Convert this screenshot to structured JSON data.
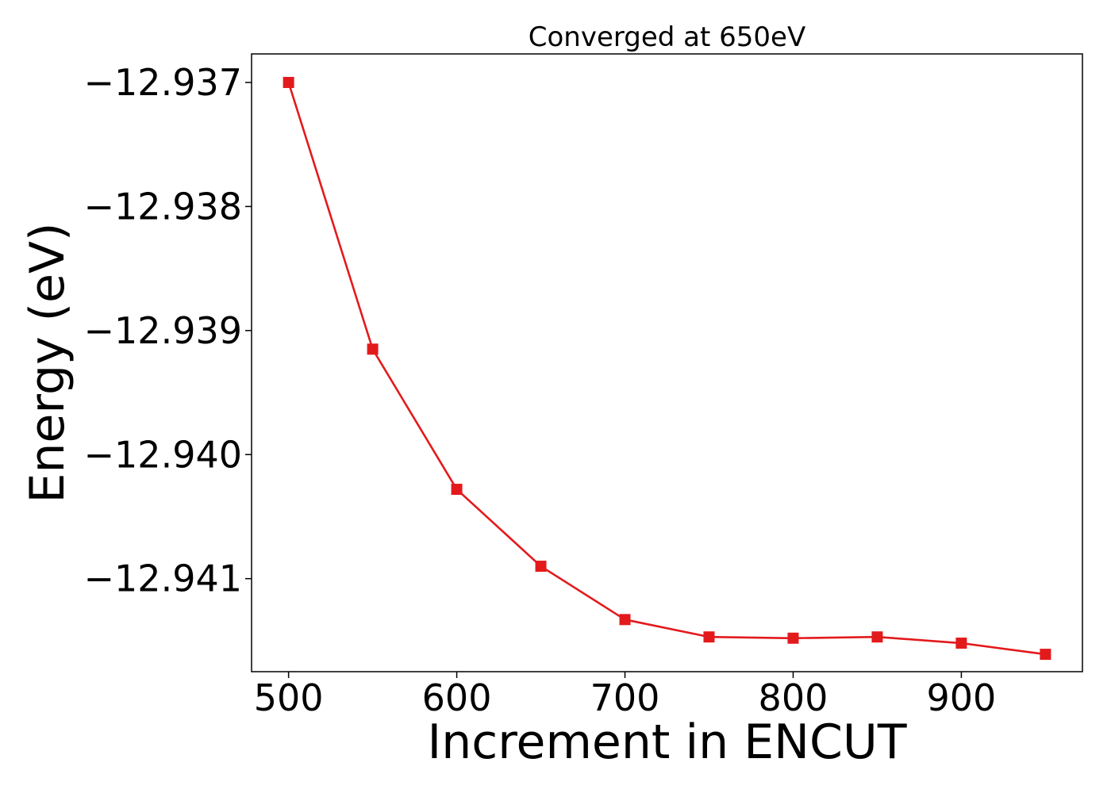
{
  "chart_data": {
    "type": "line",
    "title": "Converged at 650eV",
    "xlabel": "Increment in ENCUT",
    "ylabel": "Energy (eV)",
    "xlim": [
      478,
      972
    ],
    "ylim": [
      -12.94175,
      -12.93677
    ],
    "xticks": [
      500,
      600,
      700,
      800,
      900
    ],
    "xtick_labels": [
      "500",
      "600",
      "700",
      "800",
      "900"
    ],
    "yticks": [
      -12.937,
      -12.938,
      -12.939,
      -12.94,
      -12.941
    ],
    "ytick_labels": [
      "−12.937",
      "−12.938",
      "−12.939",
      "−12.940",
      "−12.941"
    ],
    "grid": false,
    "series": [
      {
        "color": "#e31a1c",
        "marker": "square",
        "x": [
          500,
          550,
          600,
          650,
          700,
          750,
          800,
          850,
          900,
          950
        ],
        "y": [
          -12.937,
          -12.93915,
          -12.94028,
          -12.9409,
          -12.94133,
          -12.94147,
          -12.94148,
          -12.94147,
          -12.94152,
          -12.94161
        ]
      }
    ]
  }
}
